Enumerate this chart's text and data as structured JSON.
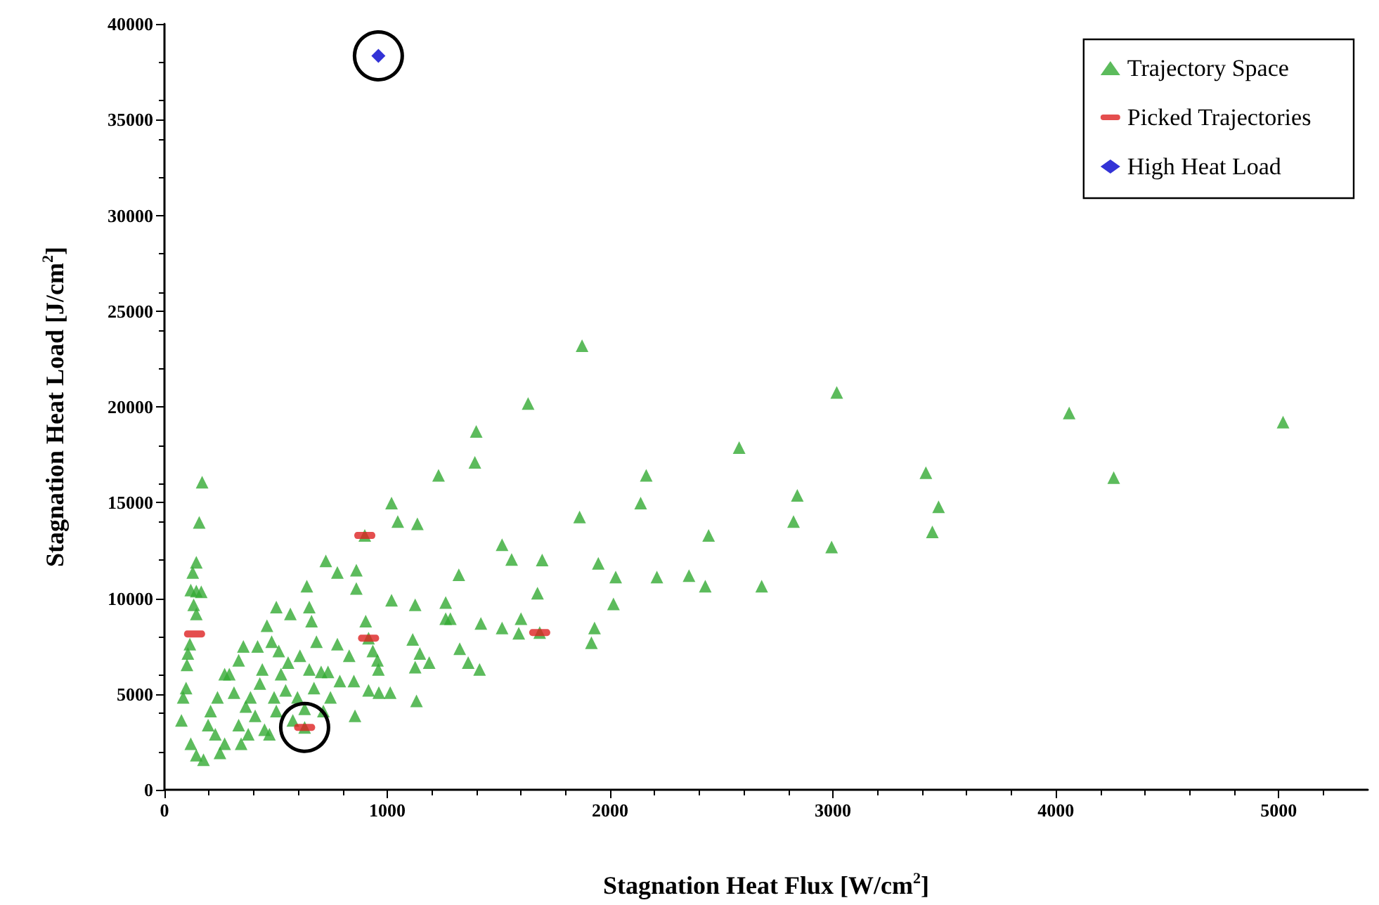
{
  "chart_data": {
    "type": "scatter",
    "xlabel": "Stagnation Heat Flux [W/cm$^{2}$]",
    "ylabel": "Stagnation Heat Load [J/cm$^{2}$]",
    "xlim": [
      0,
      5400
    ],
    "xticks": [
      0,
      1000,
      2000,
      3000,
      4000,
      5000
    ],
    "ylim": [
      0,
      40000
    ],
    "yticks": [
      0,
      5000,
      10000,
      15000,
      20000,
      25000,
      30000,
      35000,
      40000
    ],
    "grid": false,
    "legend": "top right",
    "series": [
      {
        "name": "Trajectory Space",
        "color": "#33aa33",
        "marker": "triangle",
        "x": [
          169,
          156,
          143,
          127,
          118,
          143,
          165,
          131,
          143,
          114,
          105,
          101,
          97,
          84,
          76,
          118,
          143,
          175,
          207,
          196,
          228,
          249,
          270,
          238,
          270,
          291,
          312,
          333,
          354,
          365,
          333,
          344,
          376,
          386,
          407,
          418,
          439,
          428,
          449,
          460,
          471,
          481,
          492,
          502,
          502,
          513,
          523,
          544,
          555,
          565,
          576,
          597,
          608,
          629,
          629,
          639,
          650,
          650,
          660,
          671,
          682,
          703,
          713,
          724,
          734,
          745,
          776,
          776,
          787,
          829,
          850,
          855,
          861,
          861,
          899,
          903,
          916,
          916,
          935,
          956,
          960,
          962,
          1013,
          1019,
          1047,
          1019,
          1114,
          1125,
          1125,
          1131,
          1135,
          1146,
          1188,
          1230,
          1262,
          1262,
          1283,
          1321,
          1325,
          1363,
          1399,
          1393,
          1420,
          1414,
          1515,
          1515,
          1632,
          1874,
          1558,
          1695,
          1674,
          1600,
          1590,
          1684,
          1863,
          1947,
          2025,
          2015,
          1930,
          1916,
          2162,
          2137,
          2210,
          2354,
          2442,
          2427,
          2579,
          2680,
          2840,
          2823,
          2994,
          3017,
          3417,
          3474,
          3446,
          4060,
          4260,
          5020
        ],
        "values": [
          16060,
          13960,
          11880,
          11350,
          10430,
          10380,
          10340,
          9660,
          9180,
          7610,
          7120,
          6520,
          5310,
          4830,
          3620,
          2400,
          1810,
          1570,
          4110,
          3380,
          2900,
          1930,
          2400,
          4830,
          6040,
          6040,
          5070,
          6760,
          7490,
          4350,
          3380,
          2400,
          2900,
          4830,
          3860,
          7490,
          6280,
          5550,
          3140,
          8570,
          2900,
          7730,
          4830,
          9540,
          4110,
          7250,
          6040,
          5190,
          6640,
          9180,
          3620,
          4830,
          7000,
          3260,
          4230,
          10630,
          9540,
          6280,
          8810,
          5310,
          7730,
          6160,
          4110,
          11950,
          6160,
          4830,
          11350,
          7610,
          5680,
          7000,
          5680,
          3860,
          11470,
          10510,
          13280,
          8810,
          7920,
          5190,
          7250,
          6760,
          6280,
          5070,
          5070,
          14970,
          14010,
          9900,
          7850,
          9660,
          6400,
          4640,
          13890,
          7120,
          6640,
          16420,
          9780,
          8940,
          8940,
          11230,
          7370,
          6640,
          18720,
          17100,
          8690,
          6280,
          12800,
          8450,
          20170,
          23190,
          12030,
          12000,
          10270,
          8940,
          8170,
          8210,
          14250,
          11830,
          11110,
          9710,
          8450,
          7680,
          16420,
          14970,
          11110,
          11180,
          13280,
          10630,
          17870,
          10630,
          15380,
          14010,
          12680,
          20750,
          16560,
          14780,
          13470,
          19680,
          16300,
          19200
        ]
      },
      {
        "name": "Picked Trajectories",
        "color": "#dd2222",
        "x": [
          135,
          629,
          899,
          916,
          1684
        ],
        "values": [
          8140,
          3260,
          13280,
          7920,
          8210
        ]
      },
      {
        "name": "High Heat Load",
        "color": "#0000cc",
        "marker": "diamond",
        "x": [
          960
        ],
        "values": [
          38330
        ]
      }
    ]
  }
}
